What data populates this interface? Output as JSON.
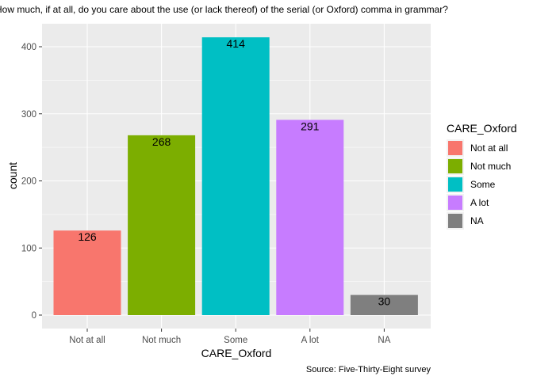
{
  "chart_data": {
    "type": "bar",
    "title": "How much, if at all, do you care about the use (or lack thereof) of the serial (or Oxford) comma in grammar?",
    "xlabel": "CARE_Oxford",
    "ylabel": "count",
    "caption": "Source: Five-Thirty-Eight survey",
    "categories": [
      "Not at all",
      "Not much",
      "Some",
      "A lot",
      "NA"
    ],
    "values": [
      126,
      268,
      414,
      291,
      30
    ],
    "colors": [
      "#F8766D",
      "#7CAE00",
      "#00BFC4",
      "#C77CFF",
      "#7F7F7F"
    ],
    "ylim": [
      0,
      435
    ],
    "yticks": [
      0,
      100,
      200,
      300,
      400
    ],
    "grid": true,
    "panel_background": "#EBEBEB",
    "legend": {
      "title": "CARE_Oxford",
      "position": "right",
      "items": [
        "Not at all",
        "Not much",
        "Some",
        "A lot",
        "NA"
      ]
    }
  }
}
